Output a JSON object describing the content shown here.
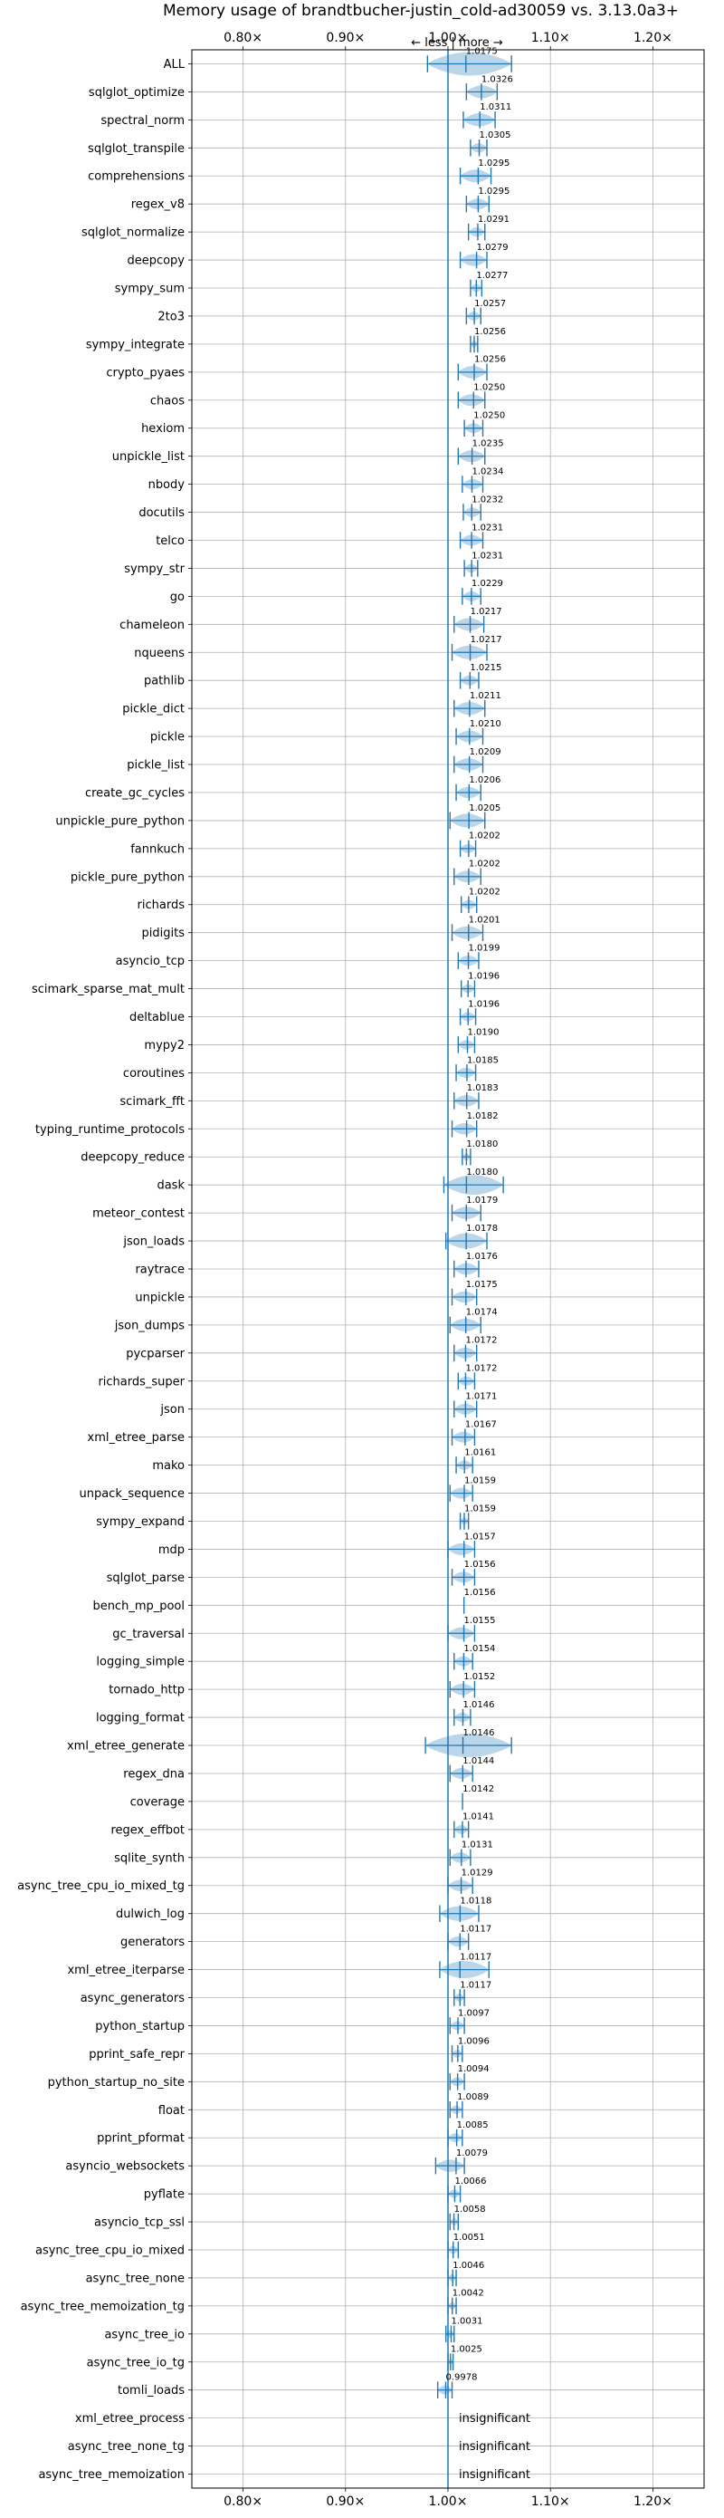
{
  "chart_data": {
    "type": "violin",
    "title": "Memory usage of brandtbucher-justin_cold-ad30059 vs. 3.13.0a3+",
    "xlim": [
      0.75,
      1.25
    ],
    "reference_x": 1.0,
    "direction_note": "← less | more →",
    "grid": true,
    "xticks": [
      {
        "value": 0.8,
        "label": "0.80×"
      },
      {
        "value": 0.9,
        "label": "0.90×"
      },
      {
        "value": 1.0,
        "label": "1.00×"
      },
      {
        "value": 1.1,
        "label": "1.10×"
      },
      {
        "value": 1.2,
        "label": "1.20×"
      }
    ],
    "benchmarks": [
      {
        "name": "ALL",
        "value": 1.0175,
        "label": "1.0175",
        "min": 0.98,
        "max": 1.062
      },
      {
        "name": "sqlglot_optimize",
        "value": 1.0326,
        "label": "1.0326",
        "min": 1.018,
        "max": 1.048
      },
      {
        "name": "spectral_norm",
        "value": 1.0311,
        "label": "1.0311",
        "min": 1.015,
        "max": 1.046
      },
      {
        "name": "sqlglot_transpile",
        "value": 1.0305,
        "label": "1.0305",
        "min": 1.022,
        "max": 1.038
      },
      {
        "name": "comprehensions",
        "value": 1.0295,
        "label": "1.0295",
        "min": 1.012,
        "max": 1.042
      },
      {
        "name": "regex_v8",
        "value": 1.0295,
        "label": "1.0295",
        "min": 1.018,
        "max": 1.04
      },
      {
        "name": "sqlglot_normalize",
        "value": 1.0291,
        "label": "1.0291",
        "min": 1.02,
        "max": 1.036
      },
      {
        "name": "deepcopy",
        "value": 1.0279,
        "label": "1.0279",
        "min": 1.012,
        "max": 1.038
      },
      {
        "name": "sympy_sum",
        "value": 1.0277,
        "label": "1.0277",
        "min": 1.022,
        "max": 1.033
      },
      {
        "name": "2to3",
        "value": 1.0257,
        "label": "1.0257",
        "min": 1.018,
        "max": 1.032
      },
      {
        "name": "sympy_integrate",
        "value": 1.0256,
        "label": "1.0256",
        "min": 1.022,
        "max": 1.029
      },
      {
        "name": "crypto_pyaes",
        "value": 1.0256,
        "label": "1.0256",
        "min": 1.01,
        "max": 1.038
      },
      {
        "name": "chaos",
        "value": 1.025,
        "label": "1.0250",
        "min": 1.01,
        "max": 1.036
      },
      {
        "name": "hexiom",
        "value": 1.025,
        "label": "1.0250",
        "min": 1.016,
        "max": 1.034
      },
      {
        "name": "unpickle_list",
        "value": 1.0235,
        "label": "1.0235",
        "min": 1.01,
        "max": 1.036
      },
      {
        "name": "nbody",
        "value": 1.0234,
        "label": "1.0234",
        "min": 1.014,
        "max": 1.034
      },
      {
        "name": "docutils",
        "value": 1.0232,
        "label": "1.0232",
        "min": 1.015,
        "max": 1.032
      },
      {
        "name": "telco",
        "value": 1.0231,
        "label": "1.0231",
        "min": 1.012,
        "max": 1.034
      },
      {
        "name": "sympy_str",
        "value": 1.0231,
        "label": "1.0231",
        "min": 1.016,
        "max": 1.029
      },
      {
        "name": "go",
        "value": 1.0229,
        "label": "1.0229",
        "min": 1.014,
        "max": 1.032
      },
      {
        "name": "chameleon",
        "value": 1.0217,
        "label": "1.0217",
        "min": 1.006,
        "max": 1.035
      },
      {
        "name": "nqueens",
        "value": 1.0217,
        "label": "1.0217",
        "min": 1.004,
        "max": 1.038
      },
      {
        "name": "pathlib",
        "value": 1.0215,
        "label": "1.0215",
        "min": 1.012,
        "max": 1.03
      },
      {
        "name": "pickle_dict",
        "value": 1.0211,
        "label": "1.0211",
        "min": 1.006,
        "max": 1.036
      },
      {
        "name": "pickle",
        "value": 1.021,
        "label": "1.0210",
        "min": 1.008,
        "max": 1.034
      },
      {
        "name": "pickle_list",
        "value": 1.0209,
        "label": "1.0209",
        "min": 1.006,
        "max": 1.034
      },
      {
        "name": "create_gc_cycles",
        "value": 1.0206,
        "label": "1.0206",
        "min": 1.008,
        "max": 1.032
      },
      {
        "name": "unpickle_pure_python",
        "value": 1.0205,
        "label": "1.0205",
        "min": 1.002,
        "max": 1.036
      },
      {
        "name": "fannkuch",
        "value": 1.0202,
        "label": "1.0202",
        "min": 1.012,
        "max": 1.027
      },
      {
        "name": "pickle_pure_python",
        "value": 1.0202,
        "label": "1.0202",
        "min": 1.006,
        "max": 1.032
      },
      {
        "name": "richards",
        "value": 1.0202,
        "label": "1.0202",
        "min": 1.013,
        "max": 1.028
      },
      {
        "name": "pidigits",
        "value": 1.0201,
        "label": "1.0201",
        "min": 1.004,
        "max": 1.034
      },
      {
        "name": "asyncio_tcp",
        "value": 1.0199,
        "label": "1.0199",
        "min": 1.01,
        "max": 1.03
      },
      {
        "name": "scimark_sparse_mat_mult",
        "value": 1.0196,
        "label": "1.0196",
        "min": 1.013,
        "max": 1.026
      },
      {
        "name": "deltablue",
        "value": 1.0196,
        "label": "1.0196",
        "min": 1.012,
        "max": 1.027
      },
      {
        "name": "mypy2",
        "value": 1.019,
        "label": "1.0190",
        "min": 1.01,
        "max": 1.026
      },
      {
        "name": "coroutines",
        "value": 1.0185,
        "label": "1.0185",
        "min": 1.008,
        "max": 1.027
      },
      {
        "name": "scimark_fft",
        "value": 1.0183,
        "label": "1.0183",
        "min": 1.006,
        "max": 1.03
      },
      {
        "name": "typing_runtime_protocols",
        "value": 1.0182,
        "label": "1.0182",
        "min": 1.004,
        "max": 1.028
      },
      {
        "name": "deepcopy_reduce",
        "value": 1.018,
        "label": "1.0180",
        "min": 1.014,
        "max": 1.022
      },
      {
        "name": "dask",
        "value": 1.018,
        "label": "1.0180",
        "min": 0.996,
        "max": 1.054
      },
      {
        "name": "meteor_contest",
        "value": 1.0179,
        "label": "1.0179",
        "min": 1.004,
        "max": 1.032
      },
      {
        "name": "json_loads",
        "value": 1.0178,
        "label": "1.0178",
        "min": 0.998,
        "max": 1.038
      },
      {
        "name": "raytrace",
        "value": 1.0176,
        "label": "1.0176",
        "min": 1.006,
        "max": 1.03
      },
      {
        "name": "unpickle",
        "value": 1.0175,
        "label": "1.0175",
        "min": 1.004,
        "max": 1.028
      },
      {
        "name": "json_dumps",
        "value": 1.0174,
        "label": "1.0174",
        "min": 1.002,
        "max": 1.032
      },
      {
        "name": "pycparser",
        "value": 1.0172,
        "label": "1.0172",
        "min": 1.006,
        "max": 1.028
      },
      {
        "name": "richards_super",
        "value": 1.0172,
        "label": "1.0172",
        "min": 1.01,
        "max": 1.026
      },
      {
        "name": "json",
        "value": 1.0171,
        "label": "1.0171",
        "min": 1.006,
        "max": 1.028
      },
      {
        "name": "xml_etree_parse",
        "value": 1.0167,
        "label": "1.0167",
        "min": 1.004,
        "max": 1.026
      },
      {
        "name": "mako",
        "value": 1.0161,
        "label": "1.0161",
        "min": 1.008,
        "max": 1.024
      },
      {
        "name": "unpack_sequence",
        "value": 1.0159,
        "label": "1.0159",
        "min": 1.002,
        "max": 1.024
      },
      {
        "name": "sympy_expand",
        "value": 1.0159,
        "label": "1.0159",
        "min": 1.012,
        "max": 1.02
      },
      {
        "name": "mdp",
        "value": 1.0157,
        "label": "1.0157",
        "min": 1.0,
        "max": 1.026
      },
      {
        "name": "sqlglot_parse",
        "value": 1.0156,
        "label": "1.0156",
        "min": 1.004,
        "max": 1.026
      },
      {
        "name": "bench_mp_pool",
        "value": 1.0156,
        "label": "1.0156",
        "min": 1.0156,
        "max": 1.0156
      },
      {
        "name": "gc_traversal",
        "value": 1.0155,
        "label": "1.0155",
        "min": 1.0,
        "max": 1.026
      },
      {
        "name": "logging_simple",
        "value": 1.0154,
        "label": "1.0154",
        "min": 1.006,
        "max": 1.024
      },
      {
        "name": "tornado_http",
        "value": 1.0152,
        "label": "1.0152",
        "min": 1.002,
        "max": 1.026
      },
      {
        "name": "logging_format",
        "value": 1.0146,
        "label": "1.0146",
        "min": 1.006,
        "max": 1.022
      },
      {
        "name": "xml_etree_generate",
        "value": 1.0146,
        "label": "1.0146",
        "min": 0.978,
        "max": 1.062
      },
      {
        "name": "regex_dna",
        "value": 1.0144,
        "label": "1.0144",
        "min": 1.002,
        "max": 1.024
      },
      {
        "name": "coverage",
        "value": 1.0142,
        "label": "1.0142",
        "min": 1.0142,
        "max": 1.0142
      },
      {
        "name": "regex_effbot",
        "value": 1.0141,
        "label": "1.0141",
        "min": 1.006,
        "max": 1.02
      },
      {
        "name": "sqlite_synth",
        "value": 1.0131,
        "label": "1.0131",
        "min": 1.002,
        "max": 1.022
      },
      {
        "name": "async_tree_cpu_io_mixed_tg",
        "value": 1.0129,
        "label": "1.0129",
        "min": 1.0,
        "max": 1.024
      },
      {
        "name": "dulwich_log",
        "value": 1.0118,
        "label": "1.0118",
        "min": 0.992,
        "max": 1.03
      },
      {
        "name": "generators",
        "value": 1.0117,
        "label": "1.0117",
        "min": 1.0,
        "max": 1.02
      },
      {
        "name": "xml_etree_iterparse",
        "value": 1.0117,
        "label": "1.0117",
        "min": 0.992,
        "max": 1.04
      },
      {
        "name": "async_generators",
        "value": 1.0117,
        "label": "1.0117",
        "min": 1.006,
        "max": 1.016
      },
      {
        "name": "python_startup",
        "value": 1.0097,
        "label": "1.0097",
        "min": 1.002,
        "max": 1.016
      },
      {
        "name": "pprint_safe_repr",
        "value": 1.0096,
        "label": "1.0096",
        "min": 1.004,
        "max": 1.014
      },
      {
        "name": "python_startup_no_site",
        "value": 1.0094,
        "label": "1.0094",
        "min": 1.002,
        "max": 1.016
      },
      {
        "name": "float",
        "value": 1.0089,
        "label": "1.0089",
        "min": 1.002,
        "max": 1.014
      },
      {
        "name": "pprint_pformat",
        "value": 1.0085,
        "label": "1.0085",
        "min": 1.0,
        "max": 1.014
      },
      {
        "name": "asyncio_websockets",
        "value": 1.0079,
        "label": "1.0079",
        "min": 0.988,
        "max": 1.016
      },
      {
        "name": "pyflate",
        "value": 1.0066,
        "label": "1.0066",
        "min": 1.0,
        "max": 1.012
      },
      {
        "name": "asyncio_tcp_ssl",
        "value": 1.0058,
        "label": "1.0058",
        "min": 1.002,
        "max": 1.01
      },
      {
        "name": "async_tree_cpu_io_mixed",
        "value": 1.0051,
        "label": "1.0051",
        "min": 1.0,
        "max": 1.01
      },
      {
        "name": "async_tree_none",
        "value": 1.0046,
        "label": "1.0046",
        "min": 1.0,
        "max": 1.008
      },
      {
        "name": "async_tree_memoization_tg",
        "value": 1.0042,
        "label": "1.0042",
        "min": 1.0,
        "max": 1.008
      },
      {
        "name": "async_tree_io",
        "value": 1.0031,
        "label": "1.0031",
        "min": 0.998,
        "max": 1.006
      },
      {
        "name": "async_tree_io_tg",
        "value": 1.0025,
        "label": "1.0025",
        "min": 1.0,
        "max": 1.005
      },
      {
        "name": "tomli_loads",
        "value": 0.9978,
        "label": "0.9978",
        "min": 0.99,
        "max": 1.004
      },
      {
        "name": "xml_etree_process",
        "value": null,
        "label": "insignificant"
      },
      {
        "name": "async_tree_none_tg",
        "value": null,
        "label": "insignificant"
      },
      {
        "name": "async_tree_memoization",
        "value": null,
        "label": "insignificant"
      }
    ]
  },
  "colors": {
    "accent": "#1f77b4",
    "violin_fill": "#1f77b4",
    "grid": "#b0b0b0",
    "axis": "#000000"
  }
}
